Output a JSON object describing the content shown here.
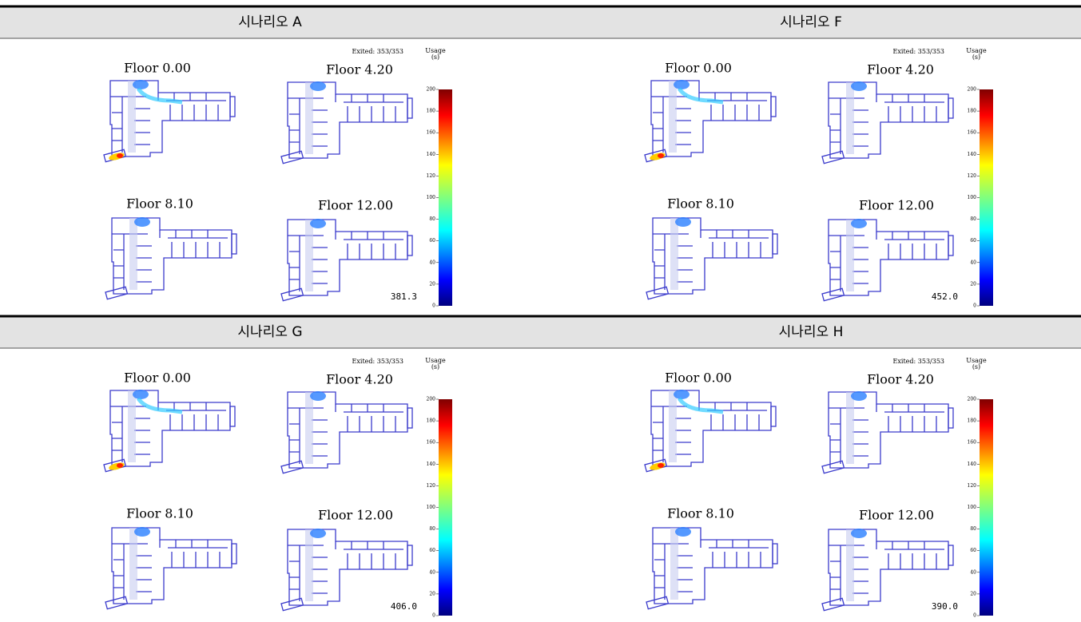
{
  "panels": [
    {
      "title": "시나리오 A",
      "exited": "Exited: 353/353",
      "usage": "Usage",
      "usage_unit": "(s)",
      "floors": [
        "Floor 0.00",
        "Floor 4.20",
        "Floor 8.10",
        "Floor 12.00"
      ],
      "colorbar_ticks": [
        0,
        20,
        40,
        60,
        80,
        100,
        120,
        140,
        160,
        180,
        200
      ],
      "time": "381.3"
    },
    {
      "title": "시나리오 F",
      "exited": "Exited: 353/353",
      "usage": "Usage",
      "usage_unit": "(s)",
      "floors": [
        "Floor 0.00",
        "Floor 4.20",
        "Floor 8.10",
        "Floor 12.00"
      ],
      "colorbar_ticks": [
        0,
        20,
        40,
        60,
        80,
        100,
        120,
        140,
        160,
        180,
        200
      ],
      "time": "452.0"
    },
    {
      "title": "시나리오 G",
      "exited": "Exited: 353/353",
      "usage": "Usage",
      "usage_unit": "(s)",
      "floors": [
        "Floor 0.00",
        "Floor 4.20",
        "Floor 8.10",
        "Floor 12.00"
      ],
      "colorbar_ticks": [
        0,
        20,
        40,
        60,
        80,
        100,
        120,
        140,
        160,
        180,
        200
      ],
      "time": "406.0"
    },
    {
      "title": "시나리오 H",
      "exited": "Exited: 353/353",
      "usage": "Usage",
      "usage_unit": "(s)",
      "floors": [
        "Floor 0.00",
        "Floor 4.20",
        "Floor 8.10",
        "Floor 12.00"
      ],
      "colorbar_ticks": [
        0,
        20,
        40,
        60,
        80,
        100,
        120,
        140,
        160,
        180,
        200
      ],
      "time": "390.0"
    }
  ]
}
